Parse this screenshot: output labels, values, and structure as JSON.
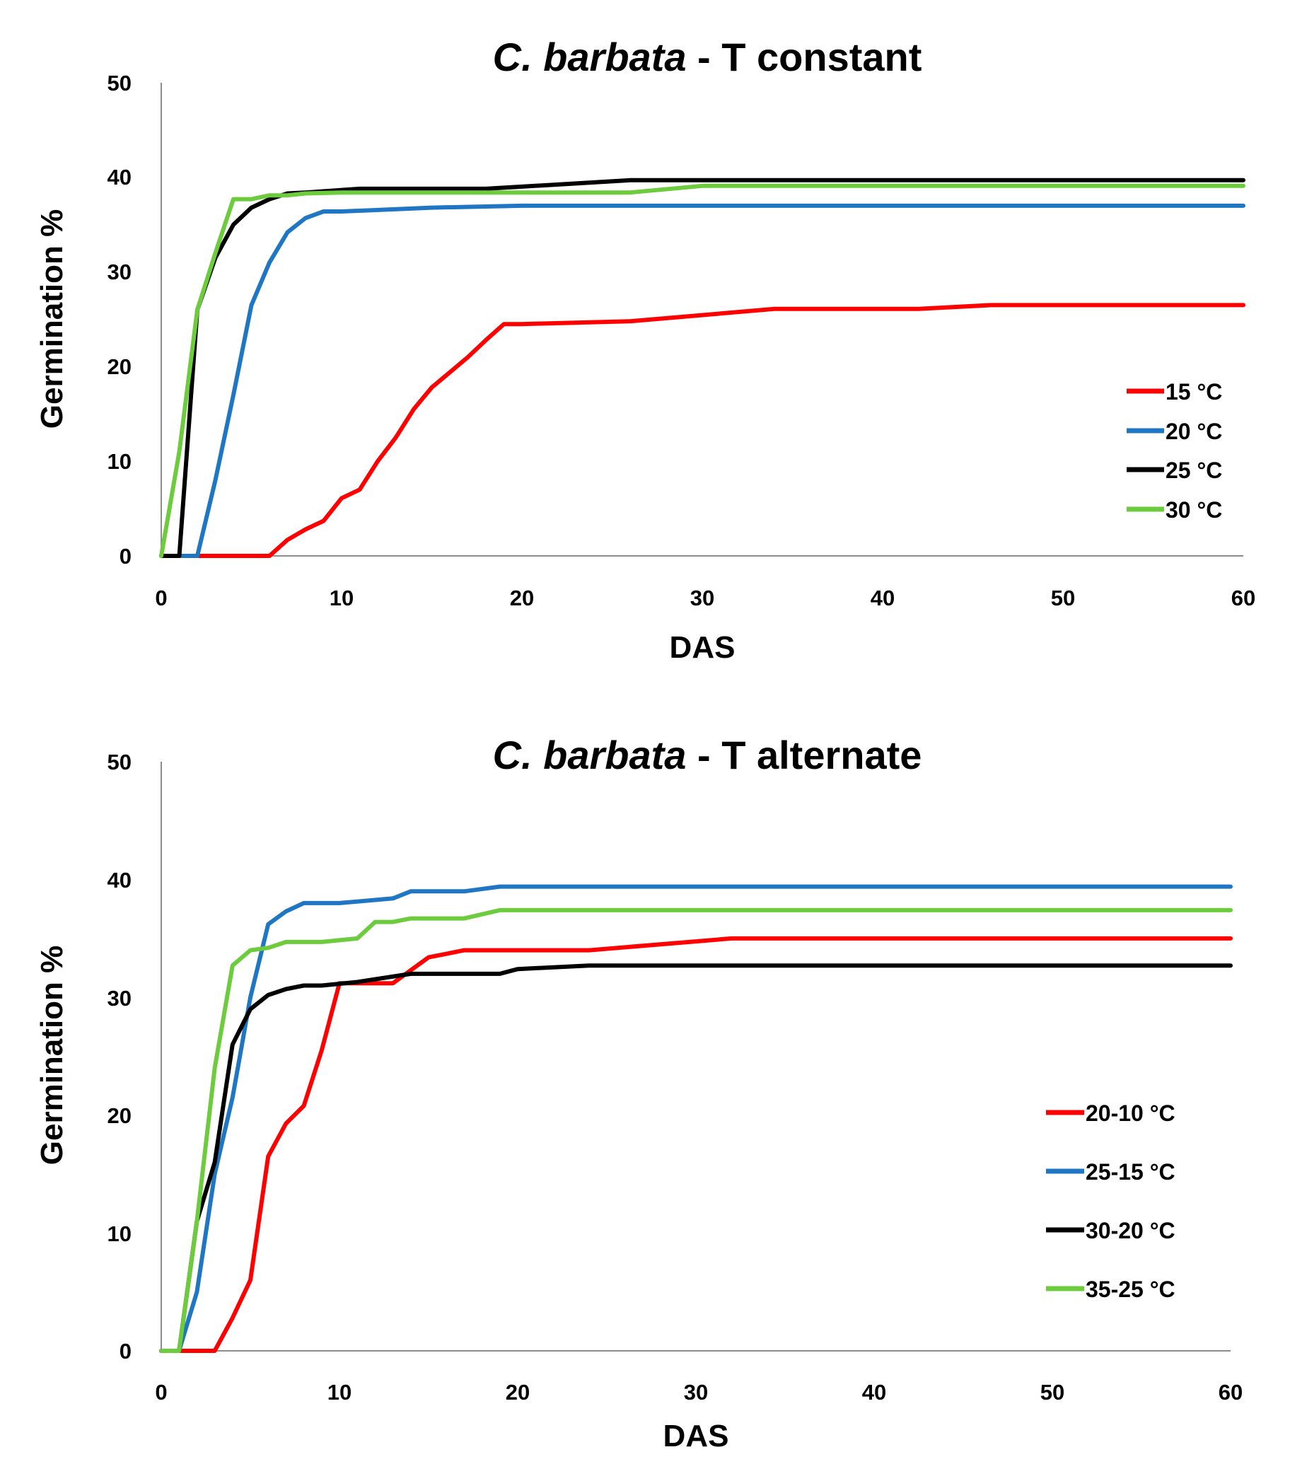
{
  "chart_data": [
    {
      "type": "line",
      "title": "C. barbata - T constant",
      "title_parts": {
        "species": "C. barbata",
        "rest": " - T constant"
      },
      "xlabel": "DAS",
      "ylabel": "Germination %",
      "xlim": [
        0,
        60
      ],
      "ylim": [
        0,
        50
      ],
      "xticks": [
        "0",
        "10",
        "20",
        "30",
        "40",
        "50",
        "60"
      ],
      "yticks": [
        "0",
        "10",
        "20",
        "30",
        "40",
        "50"
      ],
      "grid": false,
      "legend_position": "right",
      "series": [
        {
          "name": "15 °C",
          "color": "#ff0000",
          "x": [
            0,
            6,
            7,
            8,
            9,
            10,
            11,
            12,
            13,
            14,
            15,
            16,
            17,
            18,
            19,
            20,
            26,
            34,
            42,
            46,
            60
          ],
          "y": [
            0,
            0,
            1.7,
            2.8,
            3.7,
            6.1,
            7,
            10,
            12.5,
            15.5,
            17.8,
            19.4,
            21,
            22.8,
            24.5,
            24.5,
            24.8,
            26.1,
            26.1,
            26.5,
            26.5
          ]
        },
        {
          "name": "20 °C",
          "color": "#1f77c4",
          "x": [
            0,
            2,
            3,
            4,
            5,
            6,
            7,
            8,
            9,
            10,
            15,
            20,
            60
          ],
          "y": [
            0,
            0,
            8,
            17,
            26.5,
            31,
            34.2,
            35.7,
            36.4,
            36.4,
            36.8,
            37,
            37
          ]
        },
        {
          "name": "25 °C",
          "color": "#000000",
          "x": [
            0,
            1,
            2,
            3,
            4,
            5,
            6,
            7,
            8,
            11,
            18,
            26,
            60
          ],
          "y": [
            0,
            0,
            26,
            31.5,
            35,
            36.8,
            37.7,
            38.3,
            38.4,
            38.8,
            38.8,
            39.7,
            39.7
          ]
        },
        {
          "name": "30 °C",
          "color": "#6dcc3d",
          "x": [
            0,
            1,
            2,
            3,
            4,
            5,
            6,
            7,
            8,
            10,
            26,
            30,
            60
          ],
          "y": [
            0,
            11,
            26,
            32,
            37.7,
            37.7,
            38.1,
            38.1,
            38.3,
            38.4,
            38.4,
            39.1,
            39.1
          ]
        }
      ]
    },
    {
      "type": "line",
      "title": "C. barbata - T alternate",
      "title_parts": {
        "species": "C. barbata",
        "rest": " - T alternate"
      },
      "xlabel": "DAS",
      "ylabel": "Germination %",
      "xlim": [
        0,
        60
      ],
      "ylim": [
        0,
        50
      ],
      "xticks": [
        "0",
        "10",
        "20",
        "30",
        "40",
        "50",
        "60"
      ],
      "yticks": [
        "0",
        "10",
        "20",
        "30",
        "40",
        "50"
      ],
      "grid": false,
      "legend_position": "right",
      "series": [
        {
          "name": "20-10 °C",
          "color": "#ff0000",
          "x": [
            0,
            3,
            4,
            5,
            6,
            7,
            8,
            9,
            10,
            13,
            15,
            17,
            24,
            32,
            60
          ],
          "y": [
            0,
            0,
            2.8,
            6,
            16.5,
            19.3,
            20.8,
            25.5,
            31.2,
            31.2,
            33.4,
            34,
            34,
            35,
            35
          ]
        },
        {
          "name": "25-15 °C",
          "color": "#1f77c4",
          "x": [
            0,
            1,
            2,
            3,
            4,
            5,
            6,
            7,
            8,
            10,
            13,
            14,
            17,
            19,
            60
          ],
          "y": [
            0,
            0,
            5,
            15,
            21.5,
            30,
            36.2,
            37.3,
            38,
            38,
            38.4,
            39,
            39,
            39.4,
            39.4
          ]
        },
        {
          "name": "30-20 °C",
          "color": "#000000",
          "x": [
            0,
            1,
            2,
            3,
            4,
            5,
            6,
            7,
            8,
            9,
            11,
            14,
            19,
            20,
            24,
            60
          ],
          "y": [
            0,
            0,
            11,
            16,
            26,
            29,
            30.2,
            30.7,
            31,
            31,
            31.3,
            32,
            32,
            32.4,
            32.7,
            32.7
          ]
        },
        {
          "name": "35-25 °C",
          "color": "#6dcc3d",
          "x": [
            0,
            1,
            2,
            3,
            4,
            5,
            6,
            7,
            9,
            11,
            12,
            13,
            14,
            17,
            19,
            60
          ],
          "y": [
            0,
            0,
            11,
            24,
            32.7,
            34,
            34.2,
            34.7,
            34.7,
            35,
            36.4,
            36.4,
            36.7,
            36.7,
            37.4,
            37.4
          ]
        }
      ]
    }
  ]
}
